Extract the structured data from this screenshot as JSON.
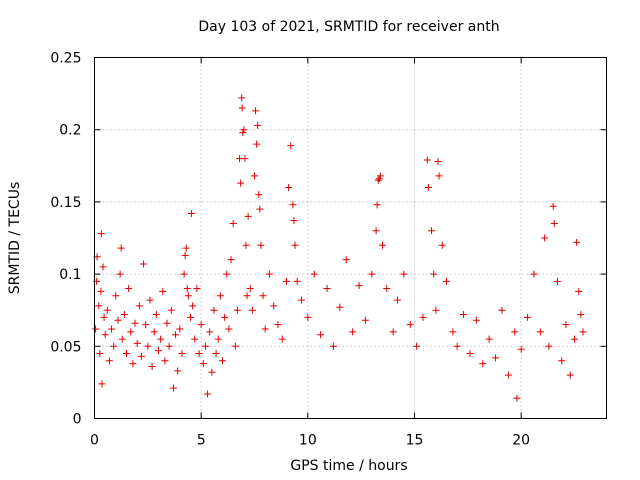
{
  "chart_data": {
    "type": "scatter",
    "title": "Day 103 of 2021, SRMTID for receiver anth",
    "xlabel": "GPS time / hours",
    "ylabel": "SRMTID / TECUs",
    "xlim": [
      0,
      24
    ],
    "ylim": [
      0,
      0.25
    ],
    "xticks": [
      0,
      5,
      10,
      15,
      20
    ],
    "xtick_labels": [
      "0",
      "5",
      "10",
      "15",
      "20"
    ],
    "yticks": [
      0,
      0.05,
      0.1,
      0.15,
      0.2,
      0.25
    ],
    "ytick_labels": [
      "0",
      "0.05",
      "0.1",
      "0.15",
      "0.2",
      "0.25"
    ],
    "grid": true,
    "marker": "plus",
    "color": "#e00000",
    "series": [
      {
        "name": "SRMTID",
        "points": [
          [
            0.05,
            0.062
          ],
          [
            0.1,
            0.095
          ],
          [
            0.12,
            0.112
          ],
          [
            0.2,
            0.078
          ],
          [
            0.25,
            0.045
          ],
          [
            0.3,
            0.088
          ],
          [
            0.32,
            0.128
          ],
          [
            0.35,
            0.024
          ],
          [
            0.4,
            0.105
          ],
          [
            0.45,
            0.07
          ],
          [
            0.5,
            0.058
          ],
          [
            0.6,
            0.075
          ],
          [
            0.7,
            0.04
          ],
          [
            0.8,
            0.062
          ],
          [
            0.9,
            0.05
          ],
          [
            1.0,
            0.085
          ],
          [
            1.1,
            0.068
          ],
          [
            1.2,
            0.1
          ],
          [
            1.25,
            0.118
          ],
          [
            1.3,
            0.055
          ],
          [
            1.4,
            0.072
          ],
          [
            1.5,
            0.045
          ],
          [
            1.6,
            0.09
          ],
          [
            1.7,
            0.06
          ],
          [
            1.8,
            0.038
          ],
          [
            1.9,
            0.066
          ],
          [
            2.0,
            0.052
          ],
          [
            2.1,
            0.078
          ],
          [
            2.2,
            0.043
          ],
          [
            2.3,
            0.107
          ],
          [
            2.4,
            0.065
          ],
          [
            2.5,
            0.05
          ],
          [
            2.6,
            0.082
          ],
          [
            2.7,
            0.036
          ],
          [
            2.8,
            0.06
          ],
          [
            2.9,
            0.072
          ],
          [
            3.0,
            0.047
          ],
          [
            3.1,
            0.055
          ],
          [
            3.2,
            0.088
          ],
          [
            3.3,
            0.04
          ],
          [
            3.4,
            0.066
          ],
          [
            3.5,
            0.05
          ],
          [
            3.6,
            0.075
          ],
          [
            3.7,
            0.021
          ],
          [
            3.8,
            0.058
          ],
          [
            3.9,
            0.033
          ],
          [
            4.0,
            0.062
          ],
          [
            4.1,
            0.045
          ],
          [
            4.2,
            0.1
          ],
          [
            4.25,
            0.113
          ],
          [
            4.3,
            0.118
          ],
          [
            4.35,
            0.09
          ],
          [
            4.4,
            0.085
          ],
          [
            4.5,
            0.07
          ],
          [
            4.55,
            0.142
          ],
          [
            4.6,
            0.078
          ],
          [
            4.7,
            0.055
          ],
          [
            4.8,
            0.09
          ],
          [
            4.9,
            0.045
          ],
          [
            5.0,
            0.065
          ],
          [
            5.1,
            0.038
          ],
          [
            5.2,
            0.05
          ],
          [
            5.3,
            0.017
          ],
          [
            5.4,
            0.06
          ],
          [
            5.5,
            0.032
          ],
          [
            5.6,
            0.075
          ],
          [
            5.7,
            0.045
          ],
          [
            5.8,
            0.055
          ],
          [
            5.9,
            0.085
          ],
          [
            6.0,
            0.04
          ],
          [
            6.1,
            0.07
          ],
          [
            6.2,
            0.1
          ],
          [
            6.3,
            0.062
          ],
          [
            6.4,
            0.11
          ],
          [
            6.5,
            0.135
          ],
          [
            6.6,
            0.05
          ],
          [
            6.7,
            0.075
          ],
          [
            6.8,
            0.18
          ],
          [
            6.85,
            0.163
          ],
          [
            6.9,
            0.222
          ],
          [
            6.92,
            0.215
          ],
          [
            6.95,
            0.198
          ],
          [
            7.0,
            0.2
          ],
          [
            7.05,
            0.18
          ],
          [
            7.1,
            0.12
          ],
          [
            7.15,
            0.085
          ],
          [
            7.2,
            0.14
          ],
          [
            7.3,
            0.09
          ],
          [
            7.4,
            0.075
          ],
          [
            7.5,
            0.168
          ],
          [
            7.55,
            0.213
          ],
          [
            7.6,
            0.19
          ],
          [
            7.65,
            0.203
          ],
          [
            7.7,
            0.155
          ],
          [
            7.75,
            0.145
          ],
          [
            7.8,
            0.12
          ],
          [
            7.9,
            0.085
          ],
          [
            8.0,
            0.062
          ],
          [
            8.2,
            0.1
          ],
          [
            8.4,
            0.078
          ],
          [
            8.6,
            0.065
          ],
          [
            8.8,
            0.055
          ],
          [
            9.0,
            0.095
          ],
          [
            9.1,
            0.16
          ],
          [
            9.2,
            0.189
          ],
          [
            9.3,
            0.148
          ],
          [
            9.35,
            0.137
          ],
          [
            9.4,
            0.12
          ],
          [
            9.5,
            0.095
          ],
          [
            9.7,
            0.082
          ],
          [
            10.0,
            0.07
          ],
          [
            10.3,
            0.1
          ],
          [
            10.6,
            0.058
          ],
          [
            10.9,
            0.09
          ],
          [
            11.2,
            0.05
          ],
          [
            11.5,
            0.077
          ],
          [
            11.8,
            0.11
          ],
          [
            12.1,
            0.06
          ],
          [
            12.4,
            0.092
          ],
          [
            12.7,
            0.068
          ],
          [
            13.0,
            0.1
          ],
          [
            13.2,
            0.13
          ],
          [
            13.25,
            0.148
          ],
          [
            13.3,
            0.165
          ],
          [
            13.35,
            0.166
          ],
          [
            13.4,
            0.168
          ],
          [
            13.5,
            0.12
          ],
          [
            13.7,
            0.09
          ],
          [
            14.0,
            0.06
          ],
          [
            14.2,
            0.082
          ],
          [
            14.5,
            0.1
          ],
          [
            14.8,
            0.065
          ],
          [
            15.1,
            0.05
          ],
          [
            15.4,
            0.07
          ],
          [
            15.6,
            0.179
          ],
          [
            15.65,
            0.16
          ],
          [
            15.8,
            0.13
          ],
          [
            15.9,
            0.1
          ],
          [
            16.0,
            0.075
          ],
          [
            16.1,
            0.178
          ],
          [
            16.15,
            0.168
          ],
          [
            16.3,
            0.12
          ],
          [
            16.5,
            0.095
          ],
          [
            16.8,
            0.06
          ],
          [
            17.0,
            0.05
          ],
          [
            17.3,
            0.072
          ],
          [
            17.6,
            0.045
          ],
          [
            17.9,
            0.068
          ],
          [
            18.2,
            0.038
          ],
          [
            18.5,
            0.055
          ],
          [
            18.8,
            0.042
          ],
          [
            19.1,
            0.075
          ],
          [
            19.4,
            0.03
          ],
          [
            19.7,
            0.06
          ],
          [
            19.8,
            0.014
          ],
          [
            20.0,
            0.048
          ],
          [
            20.3,
            0.07
          ],
          [
            20.6,
            0.1
          ],
          [
            20.9,
            0.06
          ],
          [
            21.1,
            0.125
          ],
          [
            21.3,
            0.05
          ],
          [
            21.5,
            0.147
          ],
          [
            21.55,
            0.135
          ],
          [
            21.7,
            0.095
          ],
          [
            21.9,
            0.04
          ],
          [
            22.1,
            0.065
          ],
          [
            22.3,
            0.03
          ],
          [
            22.5,
            0.055
          ],
          [
            22.6,
            0.122
          ],
          [
            22.7,
            0.088
          ],
          [
            22.8,
            0.072
          ],
          [
            22.9,
            0.06
          ]
        ]
      }
    ]
  }
}
